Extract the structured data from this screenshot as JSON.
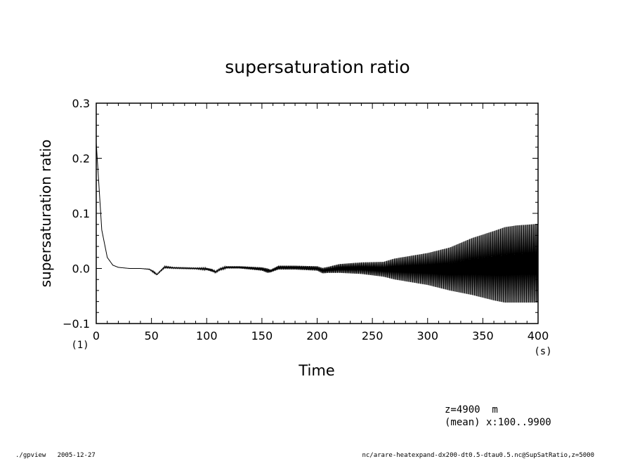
{
  "chart_data": {
    "type": "line",
    "title": "supersaturation ratio",
    "xlabel": "Time",
    "ylabel": "supersaturation ratio",
    "x_unit": "(s)",
    "y_unit": "(1)",
    "xlim": [
      0,
      400
    ],
    "ylim": [
      -0.1,
      0.3
    ],
    "x_ticks": [
      0,
      50,
      100,
      150,
      200,
      250,
      300,
      350,
      400
    ],
    "x_tick_labels": [
      "0",
      "50",
      "100",
      "150",
      "200",
      "250",
      "300",
      "350",
      "400"
    ],
    "y_ticks": [
      -0.1,
      0.0,
      0.1,
      0.2,
      0.3
    ],
    "y_tick_labels": [
      "−0.1",
      "0.0",
      "0.1",
      "0.2",
      "0.3"
    ],
    "grid": false,
    "series": [
      {
        "color": "#000000",
        "oscillation_period": 1,
        "envelope_x": [
          0,
          5,
          10,
          15,
          20,
          30,
          40,
          48,
          52,
          55,
          58,
          62,
          70,
          90,
          100,
          105,
          108,
          112,
          118,
          130,
          150,
          155,
          158,
          165,
          180,
          200,
          205,
          210,
          220,
          240,
          260,
          270,
          300,
          320,
          340,
          360,
          370,
          380,
          400
        ],
        "envelope_upper": [
          0.228,
          0.07,
          0.02,
          0.006,
          0.002,
          0.0,
          0.0,
          -0.001,
          -0.005,
          -0.01,
          -0.004,
          0.004,
          0.002,
          0.001,
          0.001,
          -0.001,
          -0.005,
          0.0,
          0.004,
          0.004,
          0.002,
          0.0,
          -0.002,
          0.005,
          0.005,
          0.004,
          0.001,
          0.003,
          0.008,
          0.011,
          0.012,
          0.018,
          0.028,
          0.038,
          0.055,
          0.068,
          0.075,
          0.078,
          0.081
        ],
        "envelope_lower": [
          0.228,
          0.07,
          0.02,
          0.006,
          0.002,
          0.0,
          0.0,
          -0.002,
          -0.008,
          -0.012,
          -0.006,
          0.001,
          0.0,
          -0.001,
          -0.003,
          -0.006,
          -0.008,
          -0.003,
          0.0,
          0.0,
          -0.004,
          -0.008,
          -0.007,
          -0.002,
          -0.002,
          -0.004,
          -0.009,
          -0.008,
          -0.008,
          -0.01,
          -0.015,
          -0.02,
          -0.03,
          -0.04,
          -0.048,
          -0.058,
          -0.062,
          -0.062,
          -0.062
        ]
      }
    ]
  },
  "annotations": {
    "level": "z=4900  m",
    "mean": "(mean) x:100..9900",
    "footer_left": "./gpview   2005-12-27",
    "footer_right": "nc/arare-heatexpand-dx200-dt0.5-dtau0.5.nc@SupSatRatio,z=5000"
  }
}
